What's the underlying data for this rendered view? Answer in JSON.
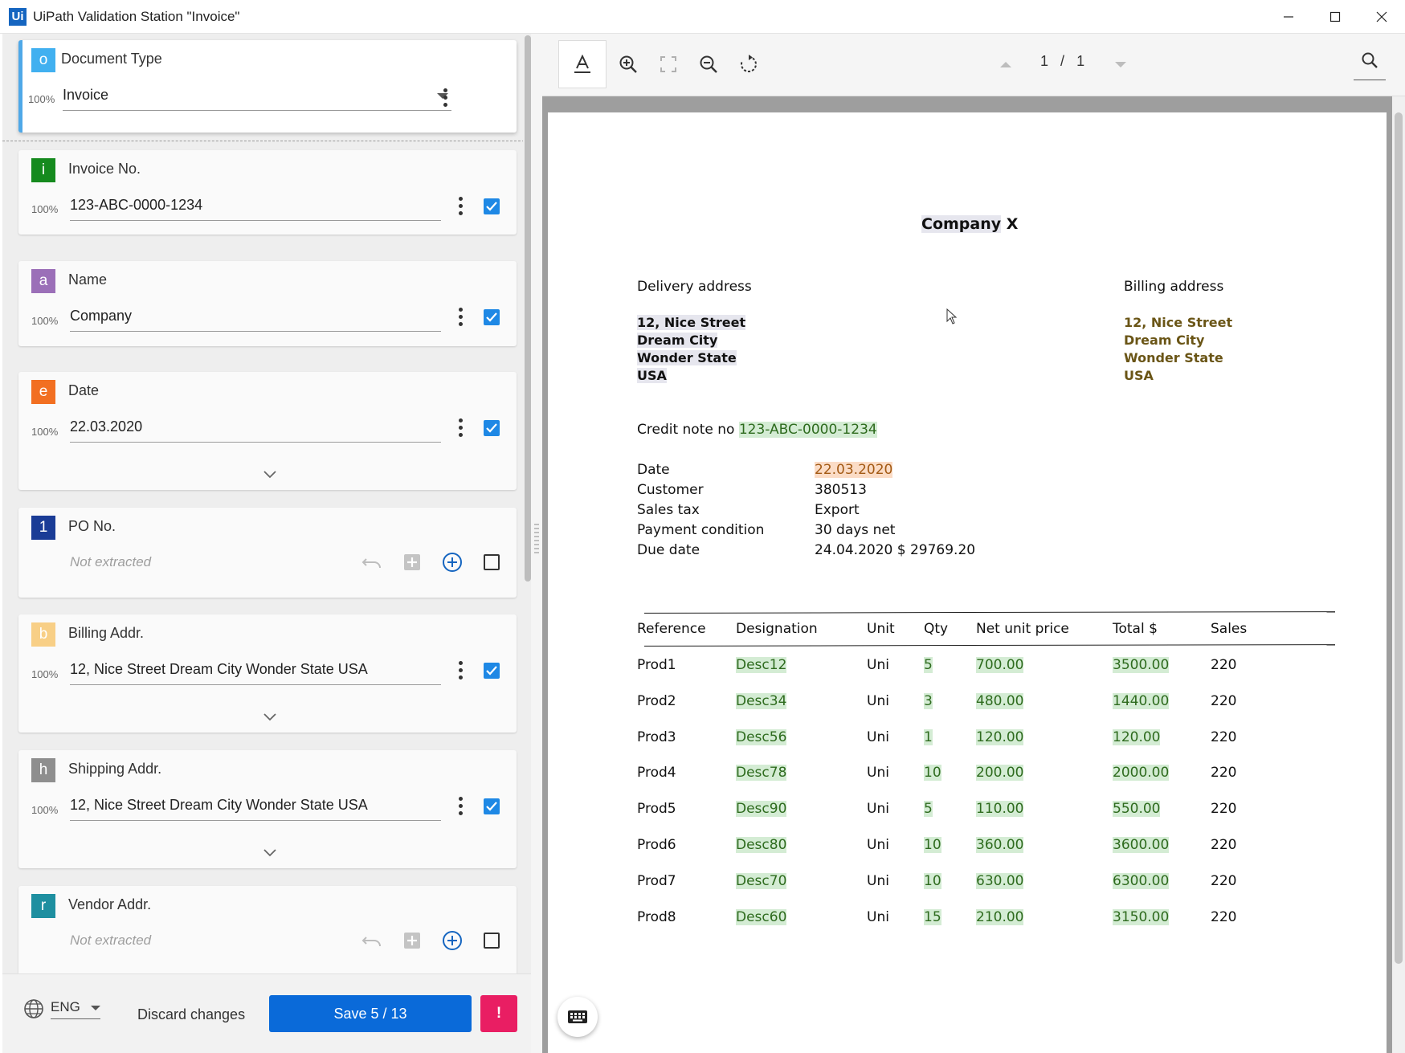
{
  "window": {
    "app_icon": "Ui",
    "title": "UiPath Validation Station \"Invoice\""
  },
  "document_type": {
    "badge": "o",
    "label": "Document Type",
    "confidence": "100%",
    "value": "Invoice"
  },
  "fields": [
    {
      "badge": "i",
      "color": "#158a1e",
      "label": "Invoice No.",
      "confidence": "100%",
      "value": "123-ABC-0000-1234",
      "extracted": true,
      "checked": true
    },
    {
      "badge": "a",
      "color": "#9b6fb8",
      "label": "Name",
      "confidence": "100%",
      "value": "Company",
      "extracted": true,
      "checked": true
    },
    {
      "badge": "e",
      "color": "#f26f21",
      "label": "Date",
      "confidence": "100%",
      "value": "22.03.2020",
      "extracted": true,
      "checked": true
    },
    {
      "badge": "1",
      "color": "#1a3c96",
      "label": "PO No.",
      "not_extracted": "Not extracted",
      "extracted": false,
      "checked": false
    },
    {
      "badge": "b",
      "color": "#f8cf86",
      "label": "Billing Addr.",
      "confidence": "100%",
      "value": "12, Nice Street Dream City Wonder State USA",
      "extracted": true,
      "checked": true
    },
    {
      "badge": "h",
      "color": "#8e8e8e",
      "label": "Shipping Addr.",
      "confidence": "100%",
      "value": "12, Nice Street Dream City Wonder State USA",
      "extracted": true,
      "checked": true
    },
    {
      "badge": "r",
      "color": "#1e8fa0",
      "label": "Vendor Addr.",
      "not_extracted": "Not extracted",
      "extracted": false,
      "checked": false
    }
  ],
  "footer": {
    "language": "ENG",
    "discard_label": "Discard changes",
    "save_label": "Save 5 / 13",
    "alert_label": "!"
  },
  "viewer": {
    "page_current": "1",
    "page_sep": "/",
    "page_total": "1"
  },
  "document": {
    "company_word": "Company",
    "company_suffix": "X",
    "delivery_title": "Delivery address",
    "billing_title": "Billing address",
    "delivery_lines": [
      "12, Nice Street",
      "Dream City",
      "Wonder State",
      "USA"
    ],
    "billing_lines": [
      "12, Nice Street",
      "Dream City",
      "Wonder State",
      "USA"
    ],
    "credit_note_label": "Credit note no",
    "credit_note_value": "123-ABC-0000-1234",
    "info": [
      {
        "label": "Date",
        "value": "22.03.2020"
      },
      {
        "label": "Customer",
        "value": "380513"
      },
      {
        "label": "Sales tax",
        "value": "Export"
      },
      {
        "label": "Payment condition",
        "value": "30 days net"
      },
      {
        "label": "Due date",
        "value": "24.04.2020 $ 29769.20"
      }
    ],
    "table_headers": [
      "Reference",
      "Designation",
      "Unit",
      "Qty",
      "Net unit price",
      "Total $",
      "Sales"
    ],
    "rows": [
      [
        "Prod1",
        "Desc12",
        "Uni",
        "5",
        "700.00",
        "3500.00",
        "220"
      ],
      [
        "Prod2",
        "Desc34",
        "Uni",
        "3",
        "480.00",
        "1440.00",
        "220"
      ],
      [
        "Prod3",
        "Desc56",
        "Uni",
        "1",
        "120.00",
        "120.00",
        "220"
      ],
      [
        "Prod4",
        "Desc78",
        "Uni",
        "10",
        "200.00",
        "2000.00",
        "220"
      ],
      [
        "Prod5",
        "Desc90",
        "Uni",
        "5",
        "110.00",
        "550.00",
        "220"
      ],
      [
        "Prod6",
        "Desc80",
        "Uni",
        "10",
        "360.00",
        "3600.00",
        "220"
      ],
      [
        "Prod7",
        "Desc70",
        "Uni",
        "10",
        "630.00",
        "6300.00",
        "220"
      ],
      [
        "Prod8",
        "Desc60",
        "Uni",
        "15",
        "210.00",
        "3150.00",
        "220"
      ]
    ]
  },
  "colors": {
    "doc_type_badge": "#41b0f0",
    "save_button": "#0a6ad9",
    "alert_button": "#e91e63",
    "checkbox": "#1e88e5",
    "add_icon": "#1565c0"
  }
}
